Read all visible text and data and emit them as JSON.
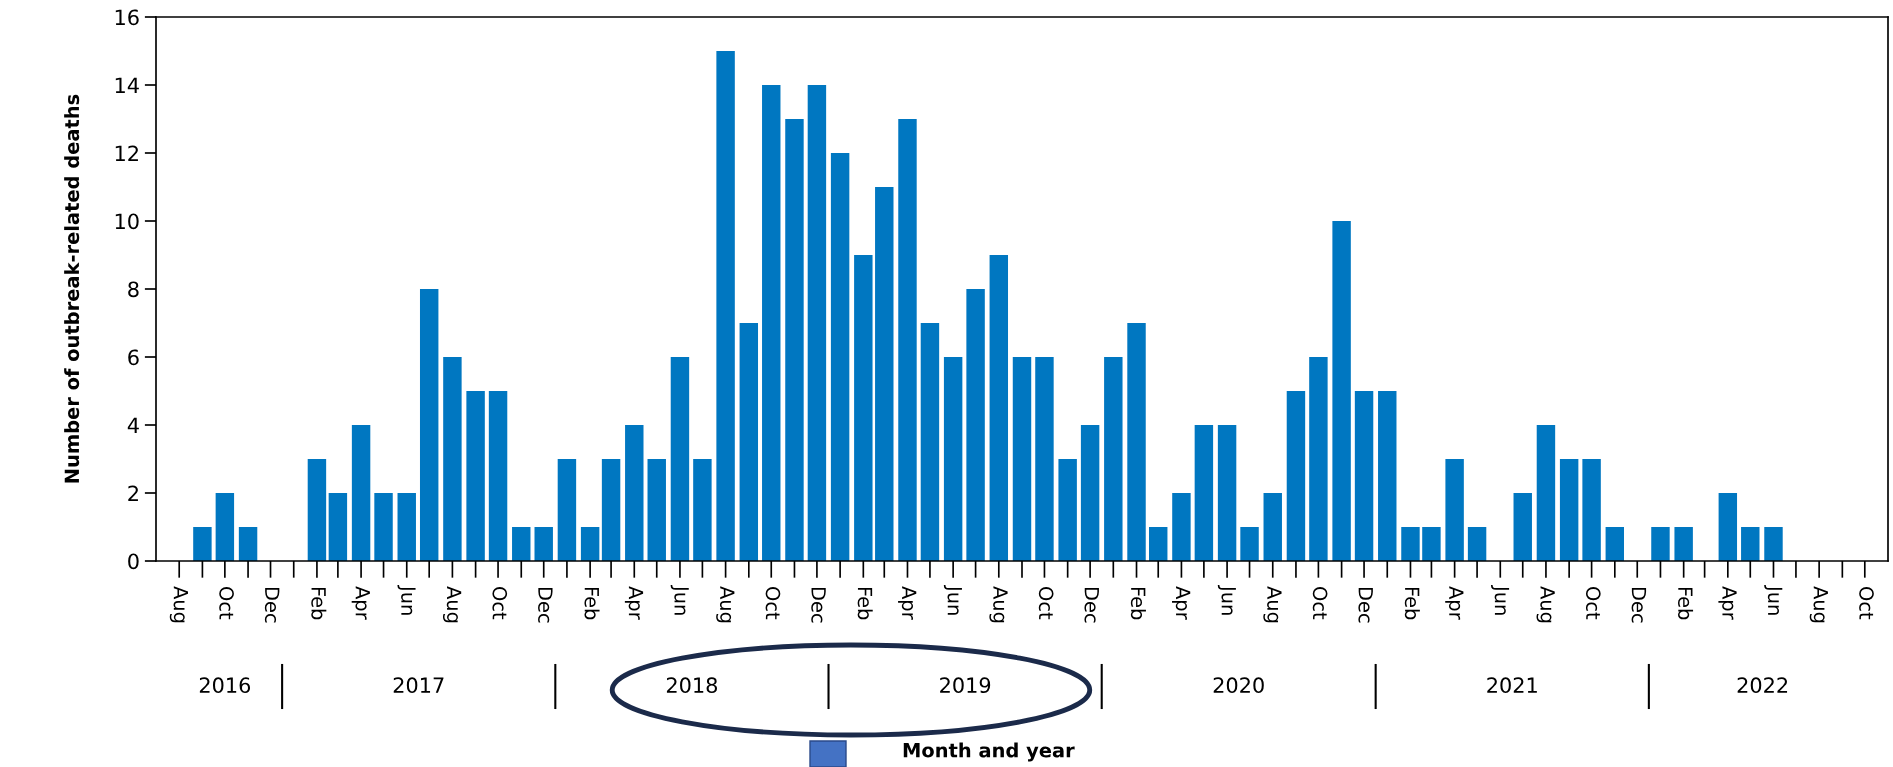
{
  "chart_data": {
    "type": "bar",
    "ylabel": "Number of outbreak-related deaths",
    "x": [
      "2016-08",
      "2016-09",
      "2016-10",
      "2016-11",
      "2016-12",
      "2017-01",
      "2017-02",
      "2017-03",
      "2017-04",
      "2017-05",
      "2017-06",
      "2017-07",
      "2017-08",
      "2017-09",
      "2017-10",
      "2017-11",
      "2017-12",
      "2018-01",
      "2018-02",
      "2018-03",
      "2018-04",
      "2018-05",
      "2018-06",
      "2018-07",
      "2018-08",
      "2018-09",
      "2018-10",
      "2018-11",
      "2018-12",
      "2019-01",
      "2019-02",
      "2019-03",
      "2019-04",
      "2019-05",
      "2019-06",
      "2019-07",
      "2019-08",
      "2019-09",
      "2019-10",
      "2019-11",
      "2019-12",
      "2020-01",
      "2020-02",
      "2020-03",
      "2020-04",
      "2020-05",
      "2020-06",
      "2020-07",
      "2020-08",
      "2020-09",
      "2020-10",
      "2020-11",
      "2020-12",
      "2021-01",
      "2021-02",
      "2021-03",
      "2021-04",
      "2021-05",
      "2021-06",
      "2021-07",
      "2021-08",
      "2021-09",
      "2021-10",
      "2021-11",
      "2021-12",
      "2022-01",
      "2022-02",
      "2022-03",
      "2022-04",
      "2022-05",
      "2022-06",
      "2022-07",
      "2022-08",
      "2022-09",
      "2022-10"
    ],
    "values": [
      0,
      1,
      2,
      1,
      0,
      0,
      3,
      2,
      4,
      2,
      2,
      8,
      6,
      5,
      5,
      1,
      1,
      3,
      1,
      3,
      4,
      3,
      6,
      3,
      15,
      7,
      14,
      13,
      14,
      12,
      9,
      11,
      13,
      7,
      6,
      8,
      9,
      6,
      6,
      3,
      4,
      6,
      7,
      1,
      2,
      4,
      4,
      1,
      2,
      5,
      6,
      10,
      5,
      5,
      1,
      1,
      3,
      1,
      0,
      2,
      4,
      3,
      3,
      1,
      0,
      1,
      1,
      0,
      2,
      1,
      1,
      0,
      0,
      0,
      0
    ],
    "color": "#0077c1",
    "xlim": [
      "2016-07",
      "2022-11"
    ],
    "xticks": [
      {
        "value": "2016-08",
        "label": "Aug"
      },
      {
        "value": "2016-10",
        "label": "Oct"
      },
      {
        "value": "2016-12",
        "label": "Dec"
      },
      {
        "value": "2017-02",
        "label": "Feb"
      },
      {
        "value": "2017-04",
        "label": "Apr"
      },
      {
        "value": "2017-06",
        "label": "Jun"
      },
      {
        "value": "2017-08",
        "label": "Aug"
      },
      {
        "value": "2017-10",
        "label": "Oct"
      },
      {
        "value": "2017-12",
        "label": "Dec"
      },
      {
        "value": "2018-02",
        "label": "Feb"
      },
      {
        "value": "2018-04",
        "label": "Apr"
      },
      {
        "value": "2018-06",
        "label": "Jun"
      },
      {
        "value": "2018-08",
        "label": "Aug"
      },
      {
        "value": "2018-10",
        "label": "Oct"
      },
      {
        "value": "2018-12",
        "label": "Dec"
      },
      {
        "value": "2019-02",
        "label": "Feb"
      },
      {
        "value": "2019-04",
        "label": "Apr"
      },
      {
        "value": "2019-06",
        "label": "Jun"
      },
      {
        "value": "2019-08",
        "label": "Aug"
      },
      {
        "value": "2019-10",
        "label": "Oct"
      },
      {
        "value": "2019-12",
        "label": "Dec"
      },
      {
        "value": "2020-02",
        "label": "Feb"
      },
      {
        "value": "2020-04",
        "label": "Apr"
      },
      {
        "value": "2020-06",
        "label": "Jun"
      },
      {
        "value": "2020-08",
        "label": "Aug"
      },
      {
        "value": "2020-10",
        "label": "Oct"
      },
      {
        "value": "2020-12",
        "label": "Dec"
      },
      {
        "value": "2021-02",
        "label": "Feb"
      },
      {
        "value": "2021-04",
        "label": "Apr"
      },
      {
        "value": "2021-06",
        "label": "Jun"
      },
      {
        "value": "2021-08",
        "label": "Aug"
      },
      {
        "value": "2021-10",
        "label": "Oct"
      },
      {
        "value": "2021-12",
        "label": "Dec"
      },
      {
        "value": "2022-02",
        "label": "Feb"
      },
      {
        "value": "2022-04",
        "label": "Apr"
      },
      {
        "value": "2022-06",
        "label": "Jun"
      },
      {
        "value": "2022-08",
        "label": "Aug"
      },
      {
        "value": "2022-10",
        "label": "Oct"
      }
    ],
    "ylim": [
      0,
      16
    ],
    "yticks": [
      0,
      2,
      4,
      6,
      8,
      10,
      12,
      14,
      16
    ],
    "annotations": [
      "2016",
      "2017",
      "2018",
      "2019",
      "2020",
      "2021",
      "2022",
      "Month and year"
    ],
    "grid": false
  }
}
